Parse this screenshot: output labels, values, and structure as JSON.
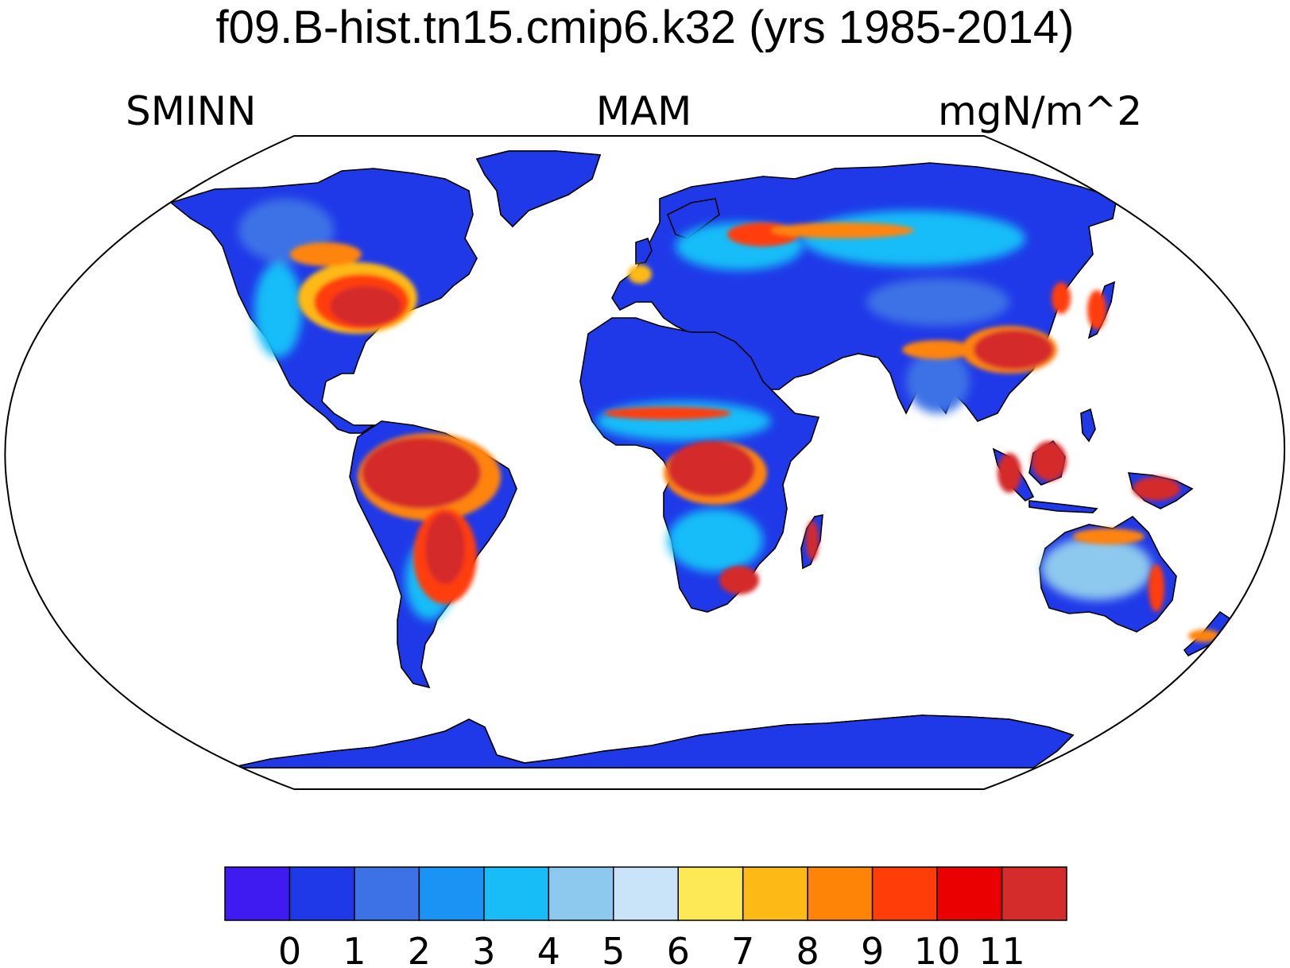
{
  "header": {
    "title": "f09.B-hist.tn15.cmip6.k32 (yrs 1985-2014)",
    "variable": "SMINN",
    "season": "MAM",
    "units": "mgN/m^2"
  },
  "colorbar": {
    "colors": [
      "#3f1bf2",
      "#1f39e8",
      "#3c72e6",
      "#1a93f5",
      "#18bdf8",
      "#8dc8ee",
      "#c9e4f8",
      "#fde955",
      "#fdb915",
      "#fe8407",
      "#ff3d08",
      "#ea0000",
      "#d42b2b"
    ],
    "labels": [
      "0",
      "1",
      "2",
      "3",
      "4",
      "5",
      "6",
      "7",
      "8",
      "9",
      "10",
      "11"
    ]
  },
  "map": {
    "projection": "robinson",
    "ocean_color": "#ffffff",
    "coastline_color": "#000000"
  }
}
